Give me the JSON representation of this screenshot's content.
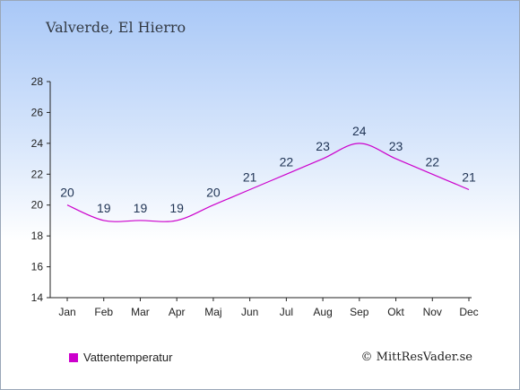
{
  "header": {
    "title": "Valverde, El Hierro"
  },
  "legend": {
    "label": "Vattentemperatur",
    "color": "#cc00cc"
  },
  "footer": {
    "credit": "© MittResVader.se"
  },
  "chart_data": {
    "type": "line",
    "title": "Valverde, El Hierro",
    "xlabel": "",
    "ylabel": "",
    "categories": [
      "Jan",
      "Feb",
      "Mar",
      "Apr",
      "Maj",
      "Jun",
      "Jul",
      "Aug",
      "Sep",
      "Okt",
      "Nov",
      "Dec"
    ],
    "series": [
      {
        "name": "Vattentemperatur",
        "values": [
          20,
          19,
          19,
          19,
          20,
          21,
          22,
          23,
          24,
          23,
          22,
          21
        ],
        "color": "#cc00cc"
      }
    ],
    "ylim": [
      14,
      28
    ],
    "yticks": [
      14,
      16,
      18,
      20,
      22,
      24,
      26,
      28
    ],
    "grid": false,
    "legend_position": "bottom-left",
    "data_labels": true
  }
}
